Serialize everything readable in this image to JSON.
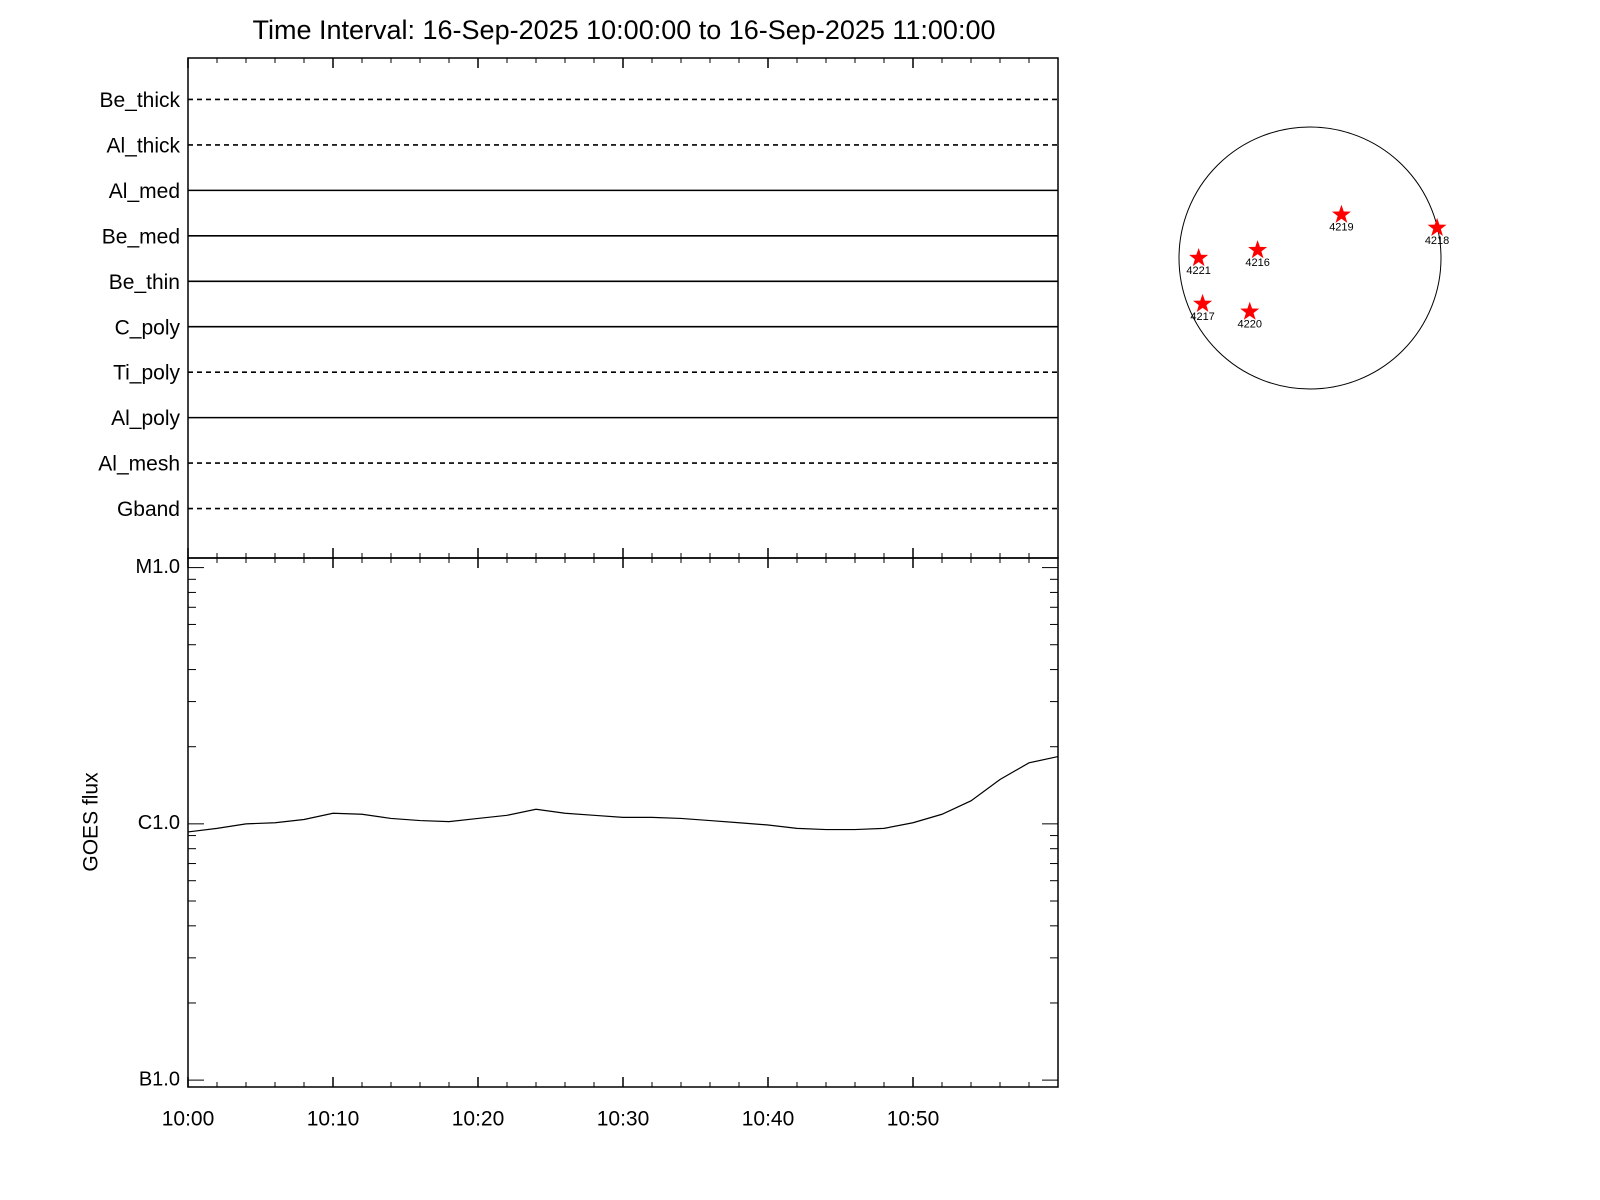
{
  "chart_data": [
    {
      "type": "filters",
      "title": "Time Interval: 16-Sep-2025 10:00:00 to 16-Sep-2025 11:00:00",
      "categories": [
        "Be_thick",
        "Al_thick",
        "Al_med",
        "Be_med",
        "Be_thin",
        "C_poly",
        "Ti_poly",
        "Al_poly",
        "Al_mesh",
        "Gband"
      ],
      "line_styles": [
        "dashed",
        "dashed",
        "solid",
        "solid",
        "solid",
        "solid",
        "dashed",
        "solid",
        "dashed",
        "dashed"
      ],
      "color": "#000000"
    },
    {
      "type": "line",
      "ylabel": "GOES flux",
      "log_scale": true,
      "color": "#000000",
      "x": [
        "10:00",
        "10:02",
        "10:04",
        "10:06",
        "10:08",
        "10:10",
        "10:12",
        "10:14",
        "10:16",
        "10:18",
        "10:20",
        "10:22",
        "10:24",
        "10:26",
        "10:28",
        "10:30",
        "10:32",
        "10:34",
        "10:36",
        "10:38",
        "10:40",
        "10:42",
        "10:44",
        "10:46",
        "10:48",
        "10:50",
        "10:52",
        "10:54",
        "10:56",
        "10:58",
        "11:00"
      ],
      "values": [
        9.3e-07,
        9.6e-07,
        1e-06,
        1.01e-06,
        1.04e-06,
        1.1e-06,
        1.09e-06,
        1.05e-06,
        1.03e-06,
        1.02e-06,
        1.05e-06,
        1.08e-06,
        1.14e-06,
        1.1e-06,
        1.08e-06,
        1.06e-06,
        1.06e-06,
        1.05e-06,
        1.03e-06,
        1.01e-06,
        9.9e-07,
        9.6e-07,
        9.5e-07,
        9.5e-07,
        9.6e-07,
        1.01e-06,
        1.09e-06,
        1.23e-06,
        1.49e-06,
        1.73e-06,
        1.83e-06
      ],
      "xlim": [
        "10:00",
        "11:00"
      ],
      "xticks": [
        "10:00",
        "10:10",
        "10:20",
        "10:30",
        "10:40",
        "10:50"
      ],
      "ylim": [
        9.4e-08,
        1.09e-05
      ],
      "yticks": [
        {
          "value": 1e-07,
          "label": "B1.0"
        },
        {
          "value": 1e-06,
          "label": "C1.0"
        },
        {
          "value": 1e-05,
          "label": "M1.0"
        }
      ]
    },
    {
      "type": "scatter",
      "color": "#ff0000",
      "xlim": [
        -1,
        1
      ],
      "ylim": [
        -1,
        1
      ],
      "labels": [
        "4219",
        "4218",
        "4221",
        "4216",
        "4217",
        "4220"
      ],
      "x": [
        0.24,
        0.97,
        -0.85,
        -0.4,
        -0.82,
        -0.46
      ],
      "y": [
        0.33,
        0.23,
        0.0,
        0.06,
        -0.35,
        -0.41
      ]
    }
  ]
}
